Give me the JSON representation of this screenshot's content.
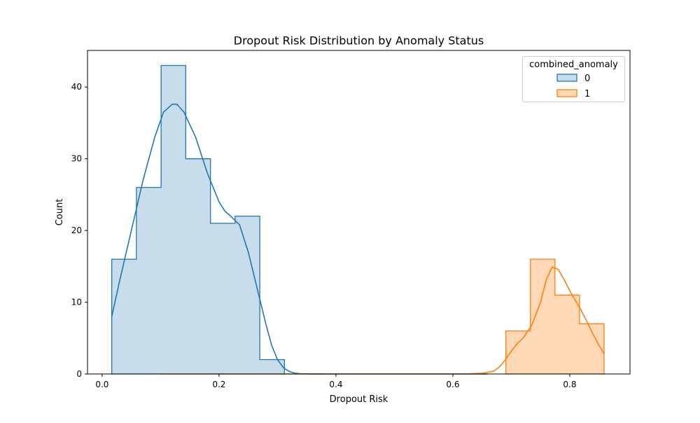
{
  "chart_data": {
    "type": "bar",
    "title": "Dropout Risk Distribution by Anomaly Status",
    "xlabel": "Dropout Risk",
    "ylabel": "Count",
    "xlim": [
      -0.025,
      0.903
    ],
    "ylim": [
      0,
      45.1
    ],
    "xticks": [
      0.0,
      0.2,
      0.4,
      0.6,
      0.8
    ],
    "yticks": [
      0,
      10,
      20,
      30,
      40
    ],
    "xtick_labels": [
      "0.0",
      "0.2",
      "0.4",
      "0.6",
      "0.8"
    ],
    "ytick_labels": [
      "0",
      "10",
      "20",
      "30",
      "40"
    ],
    "grid": false,
    "legend": {
      "title": "combined_anomaly",
      "placement": "top-right",
      "entries": [
        "0",
        "1"
      ]
    },
    "colors": {
      "series0": "#1f77b4",
      "series1": "#ff7f0e"
    },
    "series": [
      {
        "name": "0",
        "bin_edges": [
          0.0165,
          0.0587,
          0.1009,
          0.1431,
          0.1853,
          0.2275,
          0.2697,
          0.3119
        ],
        "counts": [
          16,
          26,
          43,
          30,
          21,
          22,
          2
        ],
        "kde": {
          "x": [
            0.0165,
            0.03,
            0.05,
            0.07,
            0.09,
            0.105,
            0.12,
            0.128,
            0.14,
            0.16,
            0.18,
            0.2,
            0.21,
            0.22,
            0.235,
            0.25,
            0.265,
            0.28,
            0.29,
            0.3,
            0.31,
            0.32,
            0.33,
            0.34,
            0.36,
            0.4,
            0.5,
            0.6,
            0.66
          ],
          "y": [
            8,
            13,
            20,
            27,
            33,
            36.5,
            37.6,
            37.6,
            36.5,
            33,
            28,
            24,
            22.7,
            22,
            20.8,
            17,
            12,
            7,
            4,
            2,
            0.9,
            0.35,
            0.1,
            0.03,
            0.01,
            0,
            0,
            0,
            0
          ]
        }
      },
      {
        "name": "1",
        "bin_edges": [
          0.6907,
          0.7327,
          0.7747,
          0.8167,
          0.8587
        ],
        "counts": [
          6,
          16,
          11,
          7
        ],
        "kde": {
          "x": [
            0.1,
            0.3,
            0.5,
            0.62,
            0.65,
            0.67,
            0.68,
            0.69,
            0.7,
            0.71,
            0.72,
            0.735,
            0.75,
            0.76,
            0.77,
            0.78,
            0.79,
            0.8,
            0.81,
            0.82,
            0.83,
            0.84,
            0.85,
            0.8587
          ],
          "y": [
            0,
            0,
            0,
            0,
            0.1,
            0.4,
            1,
            2,
            3.2,
            4.2,
            5,
            6.8,
            10,
            13.2,
            14.9,
            14.6,
            13.2,
            11.6,
            10.2,
            8.8,
            7.2,
            5.5,
            4,
            2.8
          ]
        }
      }
    ]
  }
}
